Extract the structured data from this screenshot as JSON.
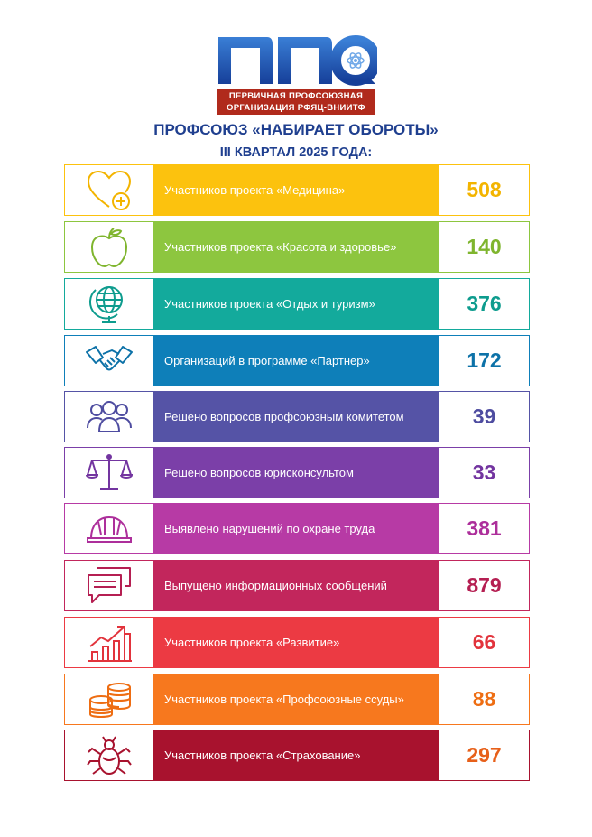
{
  "logo": {
    "letters": "ППО",
    "line1": "ПЕРВИЧНАЯ ПРОФСОЮЗНАЯ",
    "line2": "ОРГАНИЗАЦИЯ РФЯЦ-ВНИИТФ"
  },
  "title": "ПРОФСОЮЗ «НАБИРАЕТ ОБОРОТЫ»",
  "subtitle": "III КВАРТАЛ 2025 ГОДА:",
  "rows": [
    {
      "icon": "heart-plus-icon",
      "label": "Участников проекта «Медицина»",
      "value": "508",
      "color": "#fcc20e",
      "value_color": "#f3b400"
    },
    {
      "icon": "apple-icon",
      "label": "Участников проекта «Красота и здоровье»",
      "value": "140",
      "color": "#8dc63f",
      "value_color": "#7fb52e"
    },
    {
      "icon": "globe-icon",
      "label": "Участников проекта «Отдых и туризм»",
      "value": "376",
      "color": "#13aa9c",
      "value_color": "#0e9c8e"
    },
    {
      "icon": "handshake-icon",
      "label": "Организаций в программе «Партнер»",
      "value": "172",
      "color": "#0e7fb9",
      "value_color": "#0d72a8"
    },
    {
      "icon": "people-icon",
      "label": "Решено вопросов профсоюзным комитетом",
      "value": "39",
      "color": "#5553a6",
      "value_color": "#4e4ca0"
    },
    {
      "icon": "scales-icon",
      "label": "Решено вопросов юрисконсультом",
      "value": "33",
      "color": "#7b3fa8",
      "value_color": "#7335a0"
    },
    {
      "icon": "helmet-icon",
      "label": "Выявлено нарушений по охране труда",
      "value": "381",
      "color": "#b73aa5",
      "value_color": "#ad2f9b"
    },
    {
      "icon": "chat-icon",
      "label": "Выпущено информационных сообщений",
      "value": "879",
      "color": "#c2265c",
      "value_color": "#b51f52"
    },
    {
      "icon": "growth-chart-icon",
      "label": "Участников проекта «Развитие»",
      "value": "66",
      "color": "#ec3a43",
      "value_color": "#e2333c"
    },
    {
      "icon": "coins-icon",
      "label": "Участников проекта «Профсоюзные ссуды»",
      "value": "88",
      "color": "#f7781e",
      "value_color": "#ee6d12"
    },
    {
      "icon": "tick-icon",
      "label": "Участников проекта «Страхование»",
      "value": "297",
      "color": "#a8122e",
      "value_color": "#e7601a"
    }
  ]
}
